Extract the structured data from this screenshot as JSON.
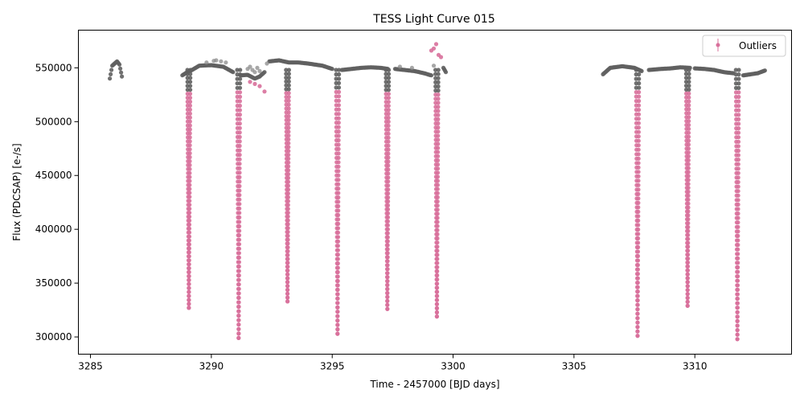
{
  "chart_data": {
    "type": "scatter",
    "title": "TESS Light Curve 015",
    "xlabel": "Time - 2457000 [BJD days]",
    "ylabel": "Flux (PDCSAP) [e-/s]",
    "xlim": [
      3284.5,
      3314.0
    ],
    "ylim": [
      284000,
      585000
    ],
    "x_ticks": [
      3285,
      3290,
      3295,
      3300,
      3305,
      3310
    ],
    "y_ticks": [
      300000,
      350000,
      400000,
      450000,
      500000,
      550000
    ],
    "grid": false,
    "legend": {
      "placement": "top-right",
      "entries": [
        "Outliers"
      ]
    },
    "colors": {
      "normal": "#606060",
      "outlier": "#d8709b"
    },
    "baseline_segments": [
      {
        "x": [
          3285.8,
          3285.9,
          3286.0,
          3286.1,
          3286.2,
          3286.3
        ],
        "y": [
          540000,
          552000,
          554000,
          556000,
          553000,
          542000
        ]
      },
      {
        "x": [
          3288.8,
          3289.0,
          3289.2,
          3289.5,
          3290.0,
          3290.5,
          3290.9
        ],
        "y": [
          543000,
          546000,
          548000,
          552000,
          552500,
          551000,
          546000
        ]
      },
      {
        "x": [
          3291.2,
          3291.5,
          3291.8,
          3292.0,
          3292.2
        ],
        "y": [
          543000,
          543500,
          540000,
          542000,
          546000
        ]
      },
      {
        "x": [
          3292.4,
          3292.8,
          3293.2,
          3293.6,
          3294.0,
          3294.6,
          3295.0
        ],
        "y": [
          556000,
          557000,
          555000,
          555000,
          554000,
          552000,
          549000
        ]
      },
      {
        "x": [
          3295.4,
          3295.8,
          3296.2,
          3296.6,
          3297.0,
          3297.3
        ],
        "y": [
          548000,
          549000,
          550000,
          550500,
          550000,
          549000
        ]
      },
      {
        "x": [
          3297.6,
          3298.0,
          3298.4,
          3298.8,
          3299.1
        ],
        "y": [
          549000,
          548000,
          547000,
          545000,
          543000
        ]
      },
      {
        "x": [
          3299.6,
          3299.7
        ],
        "y": [
          550000,
          546000
        ]
      },
      {
        "x": [
          3306.2,
          3306.5,
          3307.0,
          3307.5,
          3307.8
        ],
        "y": [
          544000,
          550000,
          551500,
          550000,
          547000
        ]
      },
      {
        "x": [
          3308.1,
          3308.6,
          3309.0,
          3309.4,
          3309.8
        ],
        "y": [
          548000,
          549000,
          549500,
          550500,
          550000
        ]
      },
      {
        "x": [
          3310.0,
          3310.4,
          3310.8,
          3311.2,
          3311.6
        ],
        "y": [
          549500,
          549000,
          548000,
          546000,
          545000
        ]
      },
      {
        "x": [
          3312.0,
          3312.3,
          3312.6,
          3312.9
        ],
        "y": [
          543000,
          544000,
          545000,
          547500
        ]
      }
    ],
    "scatter_normal": {
      "x": [
        3289.8,
        3290.1,
        3290.2,
        3290.4,
        3290.6,
        3291.5,
        3291.6,
        3291.7,
        3291.8,
        3291.9,
        3292.0,
        3292.3,
        3297.8,
        3298.3,
        3299.2
      ],
      "y": [
        555000,
        556500,
        557000,
        556000,
        555000,
        549000,
        551000,
        548000,
        546000,
        550000,
        547000,
        554000,
        551000,
        550000,
        552000
      ]
    },
    "dips": [
      {
        "center": 3289.07,
        "min": 327000
      },
      {
        "center": 3291.13,
        "min": 299000
      },
      {
        "center": 3293.15,
        "min": 333000
      },
      {
        "center": 3295.22,
        "min": 303000
      },
      {
        "center": 3297.28,
        "min": 326000
      },
      {
        "center": 3299.33,
        "min": 319000
      },
      {
        "center": 3307.63,
        "min": 301000
      },
      {
        "center": 3309.7,
        "min": 329000
      },
      {
        "center": 3311.76,
        "min": 298000
      }
    ],
    "outlier_bumps": [
      {
        "x": [
          3291.6,
          3291.8,
          3292.0,
          3292.2
        ],
        "y": [
          537000,
          535000,
          533000,
          528000
        ]
      },
      {
        "x": [
          3299.1,
          3299.2,
          3299.3,
          3299.4,
          3299.5
        ],
        "y": [
          566000,
          568000,
          572000,
          562000,
          560000
        ]
      }
    ]
  }
}
